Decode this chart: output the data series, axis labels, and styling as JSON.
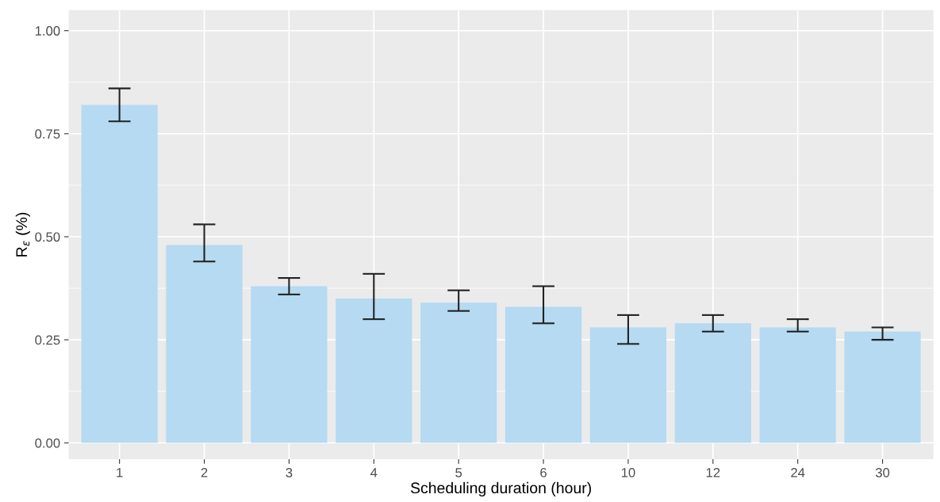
{
  "chart_data": {
    "type": "bar",
    "xlabel": "Scheduling duration (hour)",
    "ylabel": "R$_{ε}$ (%)",
    "categories": [
      "1",
      "2",
      "3",
      "4",
      "5",
      "6",
      "10",
      "12",
      "24",
      "30"
    ],
    "values": [
      0.82,
      0.48,
      0.38,
      0.35,
      0.34,
      0.33,
      0.28,
      0.29,
      0.28,
      0.27
    ],
    "errors": [
      [
        0.78,
        0.86
      ],
      [
        0.44,
        0.53
      ],
      [
        0.36,
        0.4
      ],
      [
        0.3,
        0.41
      ],
      [
        0.32,
        0.37
      ],
      [
        0.29,
        0.38
      ],
      [
        0.24,
        0.31
      ],
      [
        0.27,
        0.31
      ],
      [
        0.27,
        0.3
      ],
      [
        0.25,
        0.28
      ]
    ],
    "color": "#b5daf2",
    "ylim": [
      -0.04,
      1.05
    ],
    "yticks": [
      {
        "value": 0,
        "label": "0.00"
      },
      {
        "value": 0.25,
        "label": "0.25"
      },
      {
        "value": 0.5,
        "label": "0.50"
      },
      {
        "value": 0.75,
        "label": "0.75"
      },
      {
        "value": 1,
        "label": "1.00"
      }
    ],
    "grid": true
  }
}
